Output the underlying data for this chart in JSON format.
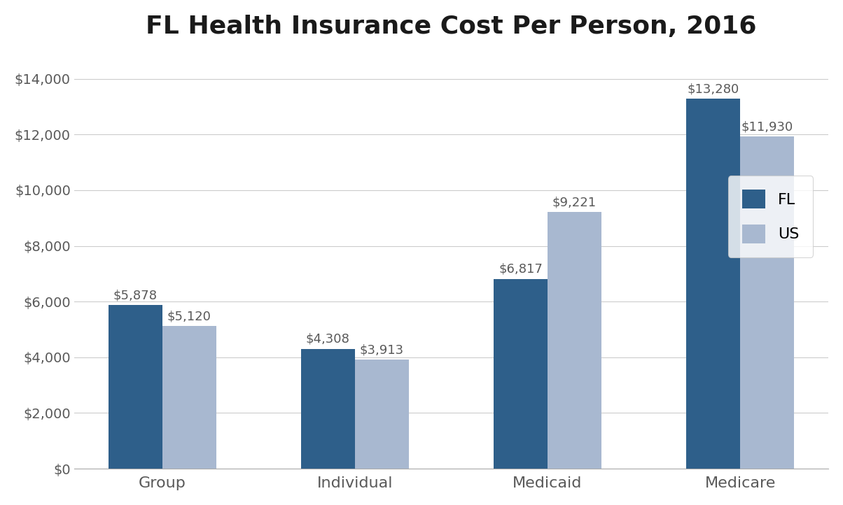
{
  "title": "FL Health Insurance Cost Per Person, 2016",
  "categories": [
    "Group",
    "Individual",
    "Medicaid",
    "Medicare"
  ],
  "fl_values": [
    5878,
    4308,
    6817,
    13280
  ],
  "us_values": [
    5120,
    3913,
    9221,
    11930
  ],
  "fl_labels": [
    "$5,878",
    "$4,308",
    "$6,817",
    "$13,280"
  ],
  "us_labels": [
    "$5,120",
    "$3,913",
    "$9,221",
    "$11,930"
  ],
  "fl_color": "#2E5F8A",
  "us_color": "#A8B8D0",
  "ylim": [
    0,
    15000
  ],
  "yticks": [
    0,
    2000,
    4000,
    6000,
    8000,
    10000,
    12000,
    14000
  ],
  "ytick_labels": [
    "$0",
    "$2,000",
    "$4,000",
    "$6,000",
    "$8,000",
    "$10,000",
    "$12,000",
    "$14,000"
  ],
  "legend_labels": [
    "FL",
    "US"
  ],
  "title_fontsize": 26,
  "tick_fontsize": 14,
  "label_fontsize": 13,
  "legend_fontsize": 16,
  "bar_width": 0.28,
  "background_color": "#FFFFFF",
  "grid_color": "#CCCCCC",
  "text_color": "#595959"
}
